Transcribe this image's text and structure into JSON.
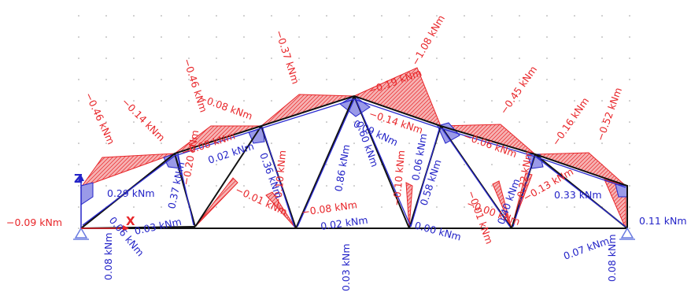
{
  "diagram": {
    "colors": {
      "member": "#111111",
      "chord_overlay": "#2a2ad0",
      "negative": "#e8262a",
      "negative_fill": "#f6b3b3",
      "positive": "#2424c8",
      "positive_fill": "#9a9ae8",
      "support": "#6a7be0"
    },
    "labels": [
      {
        "text": "−0.09 kNm",
        "color": "red"
      },
      {
        "text": "0.11 kNm",
        "color": "blue"
      },
      {
        "text": "−0.46 kNm",
        "color": "red"
      },
      {
        "text": "−0.14 kNm",
        "color": "red"
      },
      {
        "text": "−0.46 kNm",
        "color": "red"
      },
      {
        "text": "−0.08 kNm",
        "color": "red"
      },
      {
        "text": "−0.37 kNm",
        "color": "red"
      },
      {
        "text": "−1.08 kNm",
        "color": "red"
      },
      {
        "text": "−0.19 kNm",
        "color": "red"
      },
      {
        "text": "−0.14 kNm",
        "color": "red"
      },
      {
        "text": "−0.45 kNm",
        "color": "red"
      },
      {
        "text": "−0.16 kNm",
        "color": "red"
      },
      {
        "text": "−0.52 kNm",
        "color": "red"
      },
      {
        "text": "−0.06 kNm",
        "color": "red"
      },
      {
        "text": "−0.08 kNm",
        "color": "red"
      },
      {
        "text": "−0.01 kNm",
        "color": "red"
      },
      {
        "text": "−0.01 kNm",
        "color": "red"
      },
      {
        "text": "−0.00 kNm",
        "color": "red"
      },
      {
        "text": "−0.08 kNm",
        "color": "red"
      },
      {
        "text": "−0.20 kNm",
        "color": "red"
      },
      {
        "text": "−0.10 kNm",
        "color": "red"
      },
      {
        "text": "−0.10 kNm",
        "color": "red"
      },
      {
        "text": "−0.22 kNm",
        "color": "red"
      },
      {
        "text": "−0.13 kNm",
        "color": "red"
      },
      {
        "text": "0.29 kNm",
        "color": "blue"
      },
      {
        "text": "0.37 kNm",
        "color": "blue"
      },
      {
        "text": "0.02 kNm",
        "color": "blue"
      },
      {
        "text": "0.36 kNm",
        "color": "blue"
      },
      {
        "text": "0.86 kNm",
        "color": "blue"
      },
      {
        "text": "0.60 kNm",
        "color": "blue"
      },
      {
        "text": "0.09 kNm",
        "color": "blue"
      },
      {
        "text": "0.58 kNm",
        "color": "blue"
      },
      {
        "text": "0.06 kNm",
        "color": "blue"
      },
      {
        "text": "0.33 kNm",
        "color": "blue"
      },
      {
        "text": "0.40 kNm",
        "color": "blue"
      },
      {
        "text": "0.02 kNm",
        "color": "blue"
      },
      {
        "text": "0.00 kNm",
        "color": "blue"
      },
      {
        "text": "0.03 kNm",
        "color": "blue"
      },
      {
        "text": "0.06 kNm",
        "color": "blue"
      },
      {
        "text": "0.08 kNm",
        "color": "blue"
      },
      {
        "text": "0.03 kNm",
        "color": "blue"
      },
      {
        "text": "0.07 kNm",
        "color": "blue"
      },
      {
        "text": "0.08 kNm",
        "color": "blue"
      }
    ],
    "axes": {
      "z": "Z",
      "x": "X"
    }
  }
}
